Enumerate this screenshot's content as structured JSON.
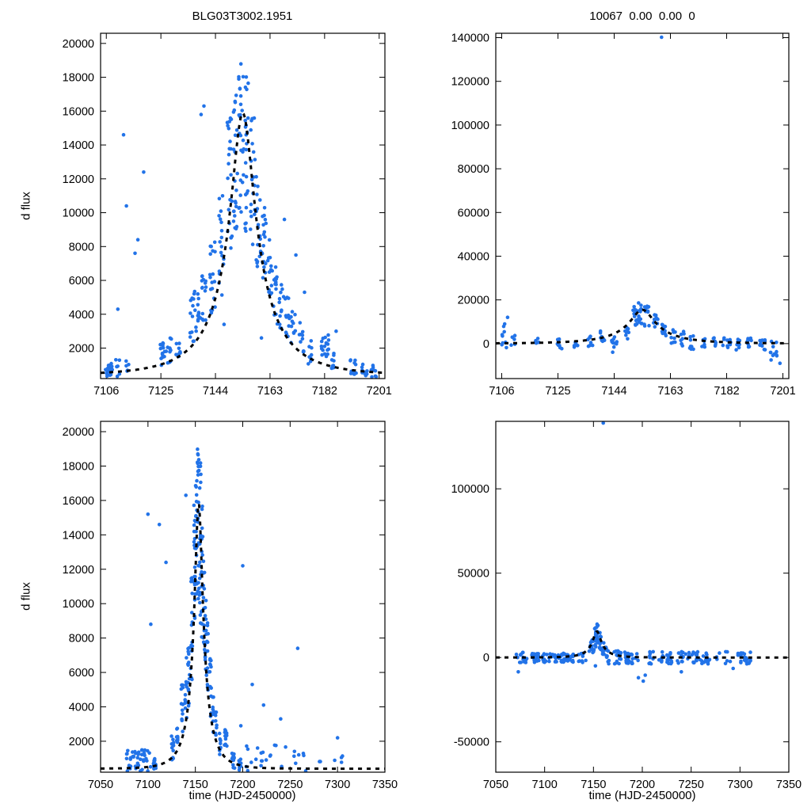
{
  "figure": {
    "bg": "#ffffff",
    "point_color": "#2273e8",
    "curve_color": "#000000"
  },
  "chart_data": [
    {
      "id": "top-left",
      "type": "scatter",
      "title": "BLG03T3002.1951",
      "xlabel": "",
      "ylabel": "d flux",
      "xlim": [
        7104,
        7203
      ],
      "ylim": [
        200,
        20600
      ],
      "xticks": [
        7106,
        7125,
        7144,
        7163,
        7182,
        7201
      ],
      "yticks": [
        2000,
        4000,
        6000,
        8000,
        10000,
        12000,
        14000,
        16000,
        18000,
        20000
      ],
      "seed": 11,
      "legend": "none",
      "grid": false,
      "model": {
        "type": "paczynski",
        "t0": 7153.5,
        "u0": 0.2,
        "tE": 21,
        "fs": 3800,
        "base": 400
      },
      "scatter": {
        "format_clusters": "[x, x_spread, n, ymin, ymax]",
        "clusters": [
          [
            7107,
            1.5,
            20,
            300,
            1100
          ],
          [
            7110,
            0.8,
            6,
            300,
            1500
          ],
          [
            7113,
            0.8,
            5,
            600,
            1600
          ],
          [
            7126,
            1.2,
            14,
            800,
            2400
          ],
          [
            7128,
            0.8,
            10,
            1000,
            2600
          ],
          [
            7131,
            0.8,
            8,
            1100,
            2900
          ],
          [
            7136,
            0.9,
            14,
            2400,
            5400
          ],
          [
            7138,
            0.8,
            12,
            2800,
            6100
          ],
          [
            7140,
            0.9,
            14,
            3300,
            6900
          ],
          [
            7143,
            0.9,
            18,
            3800,
            8300
          ],
          [
            7146,
            0.9,
            18,
            5000,
            11500
          ],
          [
            7149,
            0.9,
            22,
            7500,
            15800
          ],
          [
            7151,
            0.8,
            22,
            9000,
            17300
          ],
          [
            7153,
            0.9,
            26,
            10000,
            19100
          ],
          [
            7155,
            0.8,
            22,
            8800,
            18300
          ],
          [
            7157,
            0.8,
            20,
            7800,
            16000
          ],
          [
            7159,
            0.8,
            18,
            6800,
            12500
          ],
          [
            7161,
            0.8,
            18,
            5800,
            10400
          ],
          [
            7163,
            0.8,
            14,
            4800,
            9000
          ],
          [
            7165,
            0.8,
            14,
            3400,
            7000
          ],
          [
            7167,
            0.8,
            12,
            2900,
            6000
          ],
          [
            7169,
            0.8,
            12,
            2400,
            5000
          ],
          [
            7171,
            0.8,
            10,
            2000,
            4300
          ],
          [
            7174,
            0.8,
            10,
            1400,
            3500
          ],
          [
            7177,
            0.8,
            8,
            1000,
            2500
          ],
          [
            7182,
            1.4,
            18,
            1500,
            2800
          ],
          [
            7185,
            0.8,
            8,
            800,
            1800
          ],
          [
            7192,
            1.2,
            12,
            400,
            1300
          ],
          [
            7196,
            1.0,
            10,
            300,
            1100
          ],
          [
            7199,
            1.0,
            8,
            300,
            1000
          ]
        ],
        "outliers": [
          [
            7112,
            14600
          ],
          [
            7113,
            10400
          ],
          [
            7110,
            4300
          ],
          [
            7119,
            12400
          ],
          [
            7116,
            7600
          ],
          [
            7117,
            8400
          ],
          [
            7139,
            15800
          ],
          [
            7140,
            16300
          ],
          [
            7147,
            3400
          ],
          [
            7160,
            2600
          ],
          [
            7168,
            9600
          ],
          [
            7172,
            7500
          ],
          [
            7175,
            5300
          ],
          [
            7186,
            3000
          ]
        ]
      }
    },
    {
      "id": "top-right",
      "type": "scatter",
      "title": "10067  0.00  0.00  0",
      "xlabel": "",
      "ylabel": "",
      "xlim": [
        7104,
        7203
      ],
      "ylim": [
        -16000,
        142000
      ],
      "xticks": [
        7106,
        7125,
        7144,
        7163,
        7182,
        7201
      ],
      "yticks": [
        0,
        20000,
        40000,
        60000,
        80000,
        100000,
        120000,
        140000
      ],
      "seed": 22,
      "legend": "none",
      "grid": false,
      "model": {
        "type": "paczynski",
        "t0": 7153.5,
        "u0": 0.2,
        "tE": 21,
        "fs": 3800,
        "base": 0
      },
      "scatter": {
        "format_clusters": "[x, x_spread, n, ymin, ymax]",
        "clusters": [
          [
            7107,
            1.2,
            8,
            -2000,
            9000
          ],
          [
            7110,
            0.8,
            5,
            -1000,
            6000
          ],
          [
            7118,
            0.8,
            4,
            0,
            5000
          ],
          [
            7126,
            1.2,
            8,
            -2500,
            3000
          ],
          [
            7131,
            0.8,
            6,
            -3000,
            2000
          ],
          [
            7136,
            0.9,
            8,
            -1500,
            4000
          ],
          [
            7140,
            0.9,
            8,
            -500,
            6000
          ],
          [
            7144,
            0.9,
            10,
            -4000,
            5000
          ],
          [
            7148,
            0.9,
            10,
            1500,
            10000
          ],
          [
            7151,
            0.8,
            12,
            8000,
            17000
          ],
          [
            7153,
            0.9,
            14,
            9000,
            20000
          ],
          [
            7155,
            0.8,
            12,
            7500,
            18000
          ],
          [
            7158,
            0.8,
            10,
            4000,
            14000
          ],
          [
            7161,
            0.8,
            10,
            2000,
            10000
          ],
          [
            7164,
            0.8,
            8,
            0,
            8000
          ],
          [
            7167,
            0.8,
            8,
            -2000,
            6000
          ],
          [
            7170,
            0.8,
            8,
            -3500,
            4000
          ],
          [
            7174,
            0.8,
            6,
            -2000,
            3000
          ],
          [
            7178,
            0.8,
            6,
            -1500,
            3000
          ],
          [
            7182,
            1.4,
            10,
            -2500,
            3000
          ],
          [
            7186,
            0.8,
            8,
            -3000,
            2000
          ],
          [
            7190,
            1.2,
            10,
            -2500,
            2500
          ],
          [
            7194,
            1.0,
            10,
            -3500,
            2000
          ],
          [
            7198,
            1.2,
            10,
            -6000,
            2000
          ]
        ],
        "outliers": [
          [
            7160,
            140200
          ],
          [
            7200,
            -9000
          ],
          [
            7197,
            -7500
          ],
          [
            7108,
            12000
          ],
          [
            7107,
            9000
          ]
        ]
      }
    },
    {
      "id": "bottom-left",
      "type": "scatter",
      "title": "",
      "xlabel": "time (HJD-2450000)",
      "ylabel": "d flux",
      "xlim": [
        7050,
        7350
      ],
      "ylim": [
        200,
        20600
      ],
      "xticks": [
        7050,
        7100,
        7150,
        7200,
        7250,
        7300,
        7350
      ],
      "yticks": [
        2000,
        4000,
        6000,
        8000,
        10000,
        12000,
        14000,
        16000,
        18000,
        20000
      ],
      "seed": 33,
      "legend": "none",
      "grid": false,
      "model": {
        "type": "paczynski",
        "t0": 7153.5,
        "u0": 0.2,
        "tE": 21,
        "fs": 3800,
        "base": 400
      },
      "scatter": {
        "format_bands": "[x0, x1, step, x_spread, n_max, ymin, ymax]",
        "format_clusters": "[x, x_spread, n, ymin, ymax]",
        "bands": [
          [
            7078,
            7103,
            3,
            1.1,
            6,
            250,
            1500
          ],
          [
            7205,
            7260,
            5,
            1.4,
            5,
            250,
            1800
          ],
          [
            7265,
            7310,
            8,
            1.4,
            4,
            250,
            1400
          ]
        ],
        "clusters": [
          [
            7107,
            1.5,
            16,
            300,
            1100
          ],
          [
            7126,
            1.2,
            12,
            800,
            2400
          ],
          [
            7131,
            0.8,
            8,
            1100,
            2900
          ],
          [
            7136,
            0.9,
            12,
            2400,
            5400
          ],
          [
            7140,
            0.9,
            12,
            3300,
            6900
          ],
          [
            7143,
            0.9,
            14,
            3800,
            8300
          ],
          [
            7146,
            0.9,
            16,
            5000,
            11500
          ],
          [
            7149,
            0.9,
            18,
            7500,
            15800
          ],
          [
            7151,
            0.8,
            18,
            9000,
            17300
          ],
          [
            7153,
            0.9,
            22,
            10000,
            19100
          ],
          [
            7155,
            0.8,
            18,
            8800,
            18300
          ],
          [
            7157,
            0.8,
            16,
            7800,
            16000
          ],
          [
            7159,
            0.8,
            14,
            6800,
            12500
          ],
          [
            7161,
            0.8,
            14,
            5800,
            10400
          ],
          [
            7163,
            0.8,
            12,
            4800,
            9000
          ],
          [
            7166,
            0.8,
            12,
            3200,
            6800
          ],
          [
            7169,
            0.8,
            10,
            2400,
            5000
          ],
          [
            7172,
            0.8,
            8,
            1800,
            4000
          ],
          [
            7176,
            0.8,
            8,
            1100,
            2600
          ],
          [
            7182,
            1.4,
            14,
            1500,
            2800
          ],
          [
            7190,
            1.4,
            12,
            400,
            1300
          ],
          [
            7197,
            1.2,
            10,
            300,
            1000
          ]
        ],
        "outliers": [
          [
            7100,
            15200
          ],
          [
            7103,
            8800
          ],
          [
            7112,
            14600
          ],
          [
            7119,
            12400
          ],
          [
            7140,
            16300
          ],
          [
            7200,
            12200
          ],
          [
            7210,
            5300
          ],
          [
            7222,
            4100
          ],
          [
            7240,
            3300
          ],
          [
            7258,
            7400
          ],
          [
            7300,
            2200
          ],
          [
            7198,
            2900
          ]
        ]
      }
    },
    {
      "id": "bottom-right",
      "type": "scatter",
      "title": "",
      "xlabel": "time (HJD-2450000)",
      "ylabel": "",
      "xlim": [
        7050,
        7350
      ],
      "ylim": [
        -68000,
        140000
      ],
      "xticks": [
        7050,
        7100,
        7150,
        7200,
        7250,
        7300,
        7350
      ],
      "yticks": [
        -50000,
        0,
        50000,
        100000
      ],
      "seed": 44,
      "legend": "none",
      "grid": false,
      "model": {
        "type": "paczynski",
        "t0": 7153.5,
        "u0": 0.2,
        "tE": 21,
        "fs": 3800,
        "base": 0
      },
      "scatter": {
        "format_bands": "[x0, x1, step, x_spread, n_max, ymin, ymax]",
        "format_clusters": "[x, x_spread, n, ymin, ymax]",
        "bands": [
          [
            7072,
            7143,
            3,
            1.1,
            8,
            -3000,
            3000
          ],
          [
            7146,
            7150,
            2,
            0.7,
            9,
            1500,
            11000
          ],
          [
            7165,
            7200,
            3,
            1.1,
            8,
            -4000,
            4000
          ],
          [
            7205,
            7310,
            3,
            1.1,
            8,
            -3800,
            3500
          ]
        ],
        "clusters": [
          [
            7152,
            0.8,
            12,
            6000,
            18000
          ],
          [
            7154,
            0.8,
            14,
            8000,
            20000
          ],
          [
            7157,
            0.8,
            12,
            4000,
            15000
          ],
          [
            7160,
            0.8,
            10,
            1500,
            9500
          ],
          [
            7163,
            0.8,
            8,
            0,
            6500
          ]
        ],
        "outliers": [
          [
            7160,
            139000
          ],
          [
            7196,
            -12000
          ],
          [
            7203,
            -10500
          ],
          [
            7152,
            -5000
          ],
          [
            7073,
            -8500
          ],
          [
            7240,
            -8500
          ],
          [
            7293,
            -6500
          ],
          [
            7201,
            -14000
          ]
        ]
      }
    }
  ]
}
